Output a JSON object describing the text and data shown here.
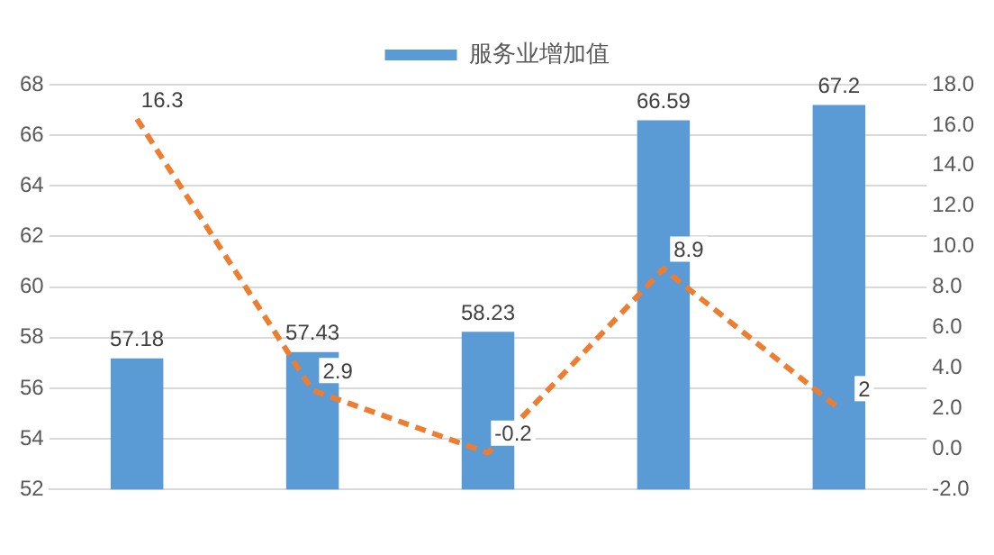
{
  "chart_data": {
    "type": "bar",
    "categories": [
      null,
      null,
      null,
      null,
      null
    ],
    "series": [
      {
        "name": "服务业增加值",
        "color": "#5b9bd5",
        "values": [
          57.18,
          57.43,
          58.23,
          66.59,
          67.2
        ]
      },
      {
        "type": "line",
        "axis": "y2",
        "color": "#ed7d31",
        "values": [
          16.3,
          2.9,
          -0.2,
          8.9,
          2
        ],
        "line_style": "dashed",
        "marker": "none"
      }
    ],
    "ylim": [
      52,
      68
    ],
    "yticks": [
      52,
      54,
      56,
      58,
      60,
      62,
      64,
      66,
      68
    ],
    "y2lim": [
      -2,
      18
    ],
    "y2ticks": [
      {
        "value": -2,
        "label": "-2.0"
      },
      {
        "value": 0,
        "label": "0.0"
      },
      {
        "value": 2,
        "label": "2.0"
      },
      {
        "value": 4,
        "label": "4.0"
      },
      {
        "value": 6,
        "label": "6.0"
      },
      {
        "value": 8,
        "label": "8.0"
      },
      {
        "value": 10,
        "label": "10.0"
      },
      {
        "value": 12,
        "label": "12.0"
      },
      {
        "value": 14,
        "label": "14.0"
      },
      {
        "value": 16,
        "label": "16.0"
      },
      {
        "value": 18,
        "label": "18.0"
      }
    ],
    "grid": "y",
    "legend": "top",
    "data_labels": true
  }
}
